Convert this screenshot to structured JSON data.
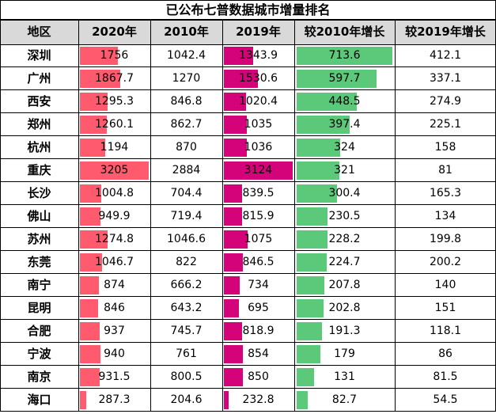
{
  "title": "已公布七普数据城市增量排名",
  "columns": [
    "地区",
    "2020年",
    "2010年",
    "2019年",
    "较2010年增长",
    "较2019年增长"
  ],
  "colors": {
    "header_bg": "#d9d9d9",
    "bar_2020": "#ff5a6e",
    "bar_2019": "#d4037a",
    "bar_growth": "#5cc87a"
  },
  "rows": [
    {
      "region": "深圳",
      "y2020": "1756",
      "y2010": "1042.4",
      "y2019": "1343.9",
      "vs2010": "713.6",
      "vs2019": "412.1"
    },
    {
      "region": "广州",
      "y2020": "1867.7",
      "y2010": "1270",
      "y2019": "1530.6",
      "vs2010": "597.7",
      "vs2019": "337.1"
    },
    {
      "region": "西安",
      "y2020": "1295.3",
      "y2010": "846.8",
      "y2019": "1020.4",
      "vs2010": "448.5",
      "vs2019": "274.9"
    },
    {
      "region": "郑州",
      "y2020": "1260.1",
      "y2010": "862.7",
      "y2019": "1035",
      "vs2010": "397.4",
      "vs2019": "225.1"
    },
    {
      "region": "杭州",
      "y2020": "1194",
      "y2010": "870",
      "y2019": "1036",
      "vs2010": "324",
      "vs2019": "158"
    },
    {
      "region": "重庆",
      "y2020": "3205",
      "y2010": "2884",
      "y2019": "3124",
      "vs2010": "321",
      "vs2019": "81"
    },
    {
      "region": "长沙",
      "y2020": "1004.8",
      "y2010": "704.4",
      "y2019": "839.5",
      "vs2010": "300.4",
      "vs2019": "165.3"
    },
    {
      "region": "佛山",
      "y2020": "949.9",
      "y2010": "719.4",
      "y2019": "815.9",
      "vs2010": "230.5",
      "vs2019": "134"
    },
    {
      "region": "苏州",
      "y2020": "1274.8",
      "y2010": "1046.6",
      "y2019": "1075",
      "vs2010": "228.2",
      "vs2019": "199.8"
    },
    {
      "region": "东莞",
      "y2020": "1046.7",
      "y2010": "822",
      "y2019": "846.5",
      "vs2010": "224.7",
      "vs2019": "200.2"
    },
    {
      "region": "南宁",
      "y2020": "874",
      "y2010": "666.2",
      "y2019": "734",
      "vs2010": "207.8",
      "vs2019": "140"
    },
    {
      "region": "昆明",
      "y2020": "846",
      "y2010": "643.2",
      "y2019": "695",
      "vs2010": "202.8",
      "vs2019": "151"
    },
    {
      "region": "合肥",
      "y2020": "937",
      "y2010": "745.7",
      "y2019": "818.9",
      "vs2010": "191.3",
      "vs2019": "118.1"
    },
    {
      "region": "宁波",
      "y2020": "940",
      "y2010": "761",
      "y2019": "854",
      "vs2010": "179",
      "vs2019": "86"
    },
    {
      "region": "南京",
      "y2020": "931.5",
      "y2010": "800.5",
      "y2019": "850",
      "vs2010": "131",
      "vs2019": "81.5"
    },
    {
      "region": "海口",
      "y2020": "287.3",
      "y2010": "204.6",
      "y2019": "232.8",
      "vs2010": "82.7",
      "vs2019": "54.5"
    }
  ]
}
